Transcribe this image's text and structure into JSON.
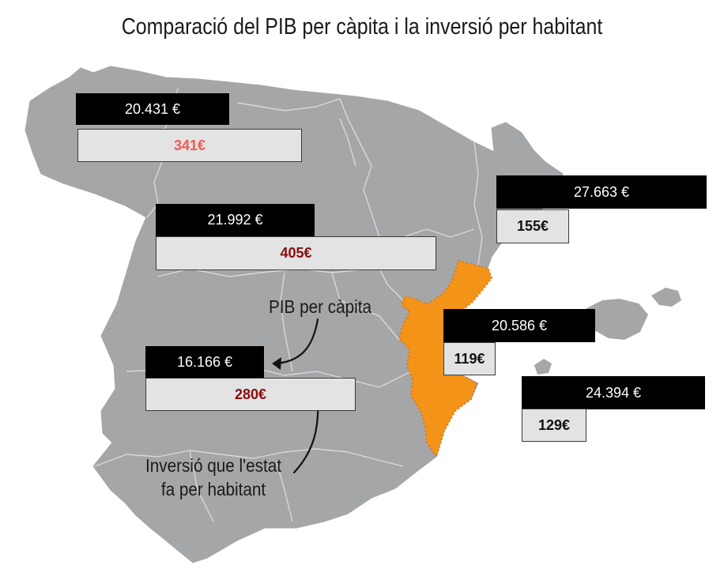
{
  "title": "Comparació del PIB per càpita i la inversió per habitant",
  "colors": {
    "map_land": "#a5a6a8",
    "map_borders": "#d8d8d8",
    "highlight_region": "#f39419",
    "gdp_box_bg": "#000000",
    "investment_box_bg": "#e3e3e3",
    "investment_red": "#f05a50",
    "investment_dark_red": "#8b0d0d",
    "investment_black": "#111111"
  },
  "regions": [
    {
      "name": "galicia-area",
      "gdp": "20.431 €",
      "investment": "341€",
      "investment_color": "#f05a50"
    },
    {
      "name": "castilla-leon-area",
      "gdp": "21.992 €",
      "investment": "405€",
      "investment_color": "#8b0d0d"
    },
    {
      "name": "catalunya-area",
      "gdp": "27.663 €",
      "investment": "155€",
      "investment_color": "#111111"
    },
    {
      "name": "castilla-la-mancha-area",
      "gdp": "16.166 €",
      "investment": "280€",
      "investment_color": "#8b0d0d"
    },
    {
      "name": "valencia-area",
      "gdp": "20.586 €",
      "investment": "119€",
      "investment_color": "#111111"
    },
    {
      "name": "balears-area",
      "gdp": "24.394 €",
      "investment": "129€",
      "investment_color": "#111111"
    }
  ],
  "annotations": {
    "gdp_label": "PIB per càpita",
    "investment_label_line1": "Inversió que l'estat",
    "investment_label_line2": "fa per habitant"
  }
}
